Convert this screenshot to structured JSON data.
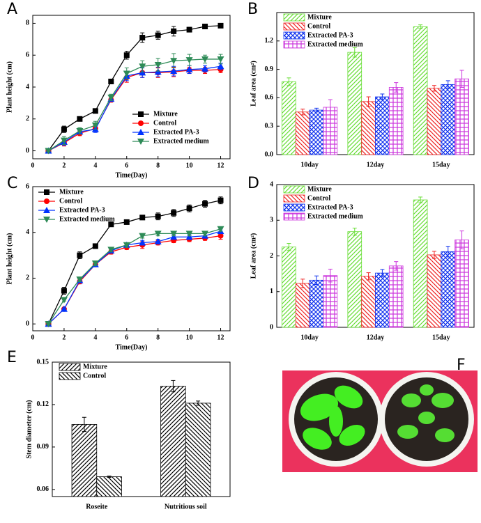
{
  "chart_data": [
    {
      "panel": "A",
      "type": "line",
      "xlabel": "Time(Day)",
      "ylabel": "Plant height (cm)",
      "x": [
        1,
        2,
        3,
        4,
        5,
        6,
        7,
        8,
        9,
        10,
        11,
        12
      ],
      "xlim": [
        0,
        12.6
      ],
      "xticks": [
        0,
        2,
        4,
        6,
        8,
        10,
        12
      ],
      "ylim": [
        -0.5,
        8.5
      ],
      "yticks": [
        0,
        2,
        4,
        6,
        8
      ],
      "legend": "lower right",
      "series": [
        {
          "name": "Mixture",
          "color": "#000000",
          "marker": "s",
          "values": [
            0,
            1.35,
            2.0,
            2.5,
            4.35,
            6.0,
            7.1,
            7.25,
            7.5,
            7.6,
            7.8,
            7.85
          ],
          "errors": [
            0.05,
            0.2,
            0.1,
            0.1,
            0.1,
            0.25,
            0.3,
            0.25,
            0.3,
            0.15,
            0.1,
            0.1
          ]
        },
        {
          "name": "Control",
          "color": "#ff0000",
          "marker": "o",
          "values": [
            0,
            0.5,
            1.1,
            1.4,
            3.2,
            4.6,
            4.9,
            4.9,
            4.95,
            5.05,
            5.05,
            5.1
          ],
          "errors": [
            0.05,
            0.2,
            0.15,
            0.2,
            0.15,
            0.3,
            0.3,
            0.3,
            0.3,
            0.2,
            0.2,
            0.2
          ]
        },
        {
          "name": "Extracted PA-3",
          "color": "#0033ff",
          "marker": "^",
          "values": [
            0,
            0.55,
            1.2,
            1.35,
            3.25,
            4.7,
            4.9,
            4.95,
            5.0,
            5.1,
            5.15,
            5.3
          ],
          "errors": [
            0.05,
            0.2,
            0.15,
            0.2,
            0.15,
            0.3,
            0.3,
            0.3,
            0.3,
            0.25,
            0.2,
            0.2
          ]
        },
        {
          "name": "Extracted medium",
          "color": "#2e8b57",
          "marker": "v",
          "values": [
            0,
            0.65,
            1.25,
            1.6,
            3.35,
            4.85,
            5.3,
            5.4,
            5.65,
            5.7,
            5.75,
            5.75
          ],
          "errors": [
            0.05,
            0.25,
            0.2,
            0.25,
            0.2,
            0.35,
            0.35,
            0.4,
            0.45,
            0.35,
            0.25,
            0.3
          ]
        }
      ]
    },
    {
      "panel": "B",
      "type": "bar",
      "ylabel": "Leaf area (cm²)",
      "categories": [
        "10day",
        "12day",
        "15day"
      ],
      "ylim": [
        0,
        1.5
      ],
      "yticks": [
        {
          "value": 0,
          "label": "0.0"
        },
        0.3,
        0.6,
        0.9,
        1.2
      ],
      "legend": "upper left",
      "series": [
        {
          "name": "Mixture",
          "color": "#66dd33",
          "hatch": "/",
          "values": [
            0.77,
            1.08,
            1.35
          ],
          "errors": [
            0.04,
            0.05,
            0.02
          ]
        },
        {
          "name": "Control",
          "color": "#ee2222",
          "hatch": "\\",
          "values": [
            0.45,
            0.56,
            0.7
          ],
          "errors": [
            0.03,
            0.05,
            0.03
          ]
        },
        {
          "name": "Extracted PA-3",
          "color": "#1133ee",
          "hatch": "x",
          "values": [
            0.47,
            0.61,
            0.74
          ],
          "errors": [
            0.02,
            0.03,
            0.04
          ]
        },
        {
          "name": "Extracted medium",
          "color": "#cc33dd",
          "hatch": "+",
          "values": [
            0.5,
            0.71,
            0.8
          ],
          "errors": [
            0.08,
            0.05,
            0.09
          ]
        }
      ]
    },
    {
      "panel": "C",
      "type": "line",
      "xlabel": "Time(Day)",
      "ylabel": "Plant height (cm)",
      "x": [
        1,
        2,
        3,
        4,
        5,
        6,
        7,
        8,
        9,
        10,
        11,
        12
      ],
      "xlim": [
        0,
        12.6
      ],
      "xticks": [
        0,
        2,
        4,
        6,
        8,
        10,
        12
      ],
      "ylim": [
        -0.3,
        6
      ],
      "yticks": [
        0,
        2,
        4,
        6
      ],
      "legend": "upper left",
      "series": [
        {
          "name": "Mixture",
          "color": "#000000",
          "marker": "s",
          "values": [
            0,
            1.45,
            3.0,
            3.4,
            4.35,
            4.45,
            4.65,
            4.7,
            4.85,
            5.05,
            5.25,
            5.4
          ],
          "errors": [
            0.05,
            0.15,
            0.15,
            0.1,
            0.05,
            0.05,
            0.05,
            0.15,
            0.15,
            0.15,
            0.15,
            0.15
          ]
        },
        {
          "name": "Control",
          "color": "#ff0000",
          "marker": "o",
          "values": [
            0,
            0.65,
            1.85,
            2.6,
            3.15,
            3.35,
            3.45,
            3.55,
            3.65,
            3.7,
            3.75,
            3.85
          ],
          "errors": [
            0.05,
            0.05,
            0.1,
            0.1,
            0.1,
            0.1,
            0.15,
            0.1,
            0.1,
            0.1,
            0.1,
            0.15
          ]
        },
        {
          "name": "Extracted PA-3",
          "color": "#0033ff",
          "marker": "^",
          "values": [
            0,
            0.65,
            1.9,
            2.6,
            3.2,
            3.45,
            3.55,
            3.6,
            3.8,
            3.8,
            3.85,
            4.05
          ],
          "errors": [
            0.05,
            0.05,
            0.1,
            0.1,
            0.1,
            0.1,
            0.1,
            0.1,
            0.1,
            0.1,
            0.1,
            0.1
          ]
        },
        {
          "name": "Extracted medium",
          "color": "#2e8b57",
          "marker": "v",
          "values": [
            0,
            1.05,
            1.95,
            2.65,
            3.25,
            3.45,
            3.85,
            3.95,
            3.95,
            3.95,
            3.95,
            4.15
          ],
          "errors": [
            0.05,
            0.05,
            0.1,
            0.1,
            0.1,
            0.1,
            0.1,
            0.1,
            0.1,
            0.1,
            0.1,
            0.1
          ]
        }
      ]
    },
    {
      "panel": "D",
      "type": "bar",
      "ylabel": "Leaf area (cm²)",
      "categories": [
        "10day",
        "12day",
        "15day"
      ],
      "ylim": [
        0,
        4
      ],
      "yticks": [
        0,
        1,
        2,
        3,
        4
      ],
      "legend": "upper left",
      "series": [
        {
          "name": "Mixture",
          "color": "#66dd33",
          "hatch": "/",
          "values": [
            2.25,
            2.68,
            3.57
          ],
          "errors": [
            0.1,
            0.1,
            0.08
          ]
        },
        {
          "name": "Control",
          "color": "#ee2222",
          "hatch": "\\",
          "values": [
            1.23,
            1.43,
            2.03
          ],
          "errors": [
            0.12,
            0.1,
            0.1
          ]
        },
        {
          "name": "Extracted PA-3",
          "color": "#1133ee",
          "hatch": "x",
          "values": [
            1.32,
            1.52,
            2.12
          ],
          "errors": [
            0.12,
            0.1,
            0.15
          ]
        },
        {
          "name": "Extracted medium",
          "color": "#cc33dd",
          "hatch": "+",
          "values": [
            1.45,
            1.72,
            2.45
          ],
          "errors": [
            0.18,
            0.12,
            0.25
          ]
        }
      ]
    },
    {
      "panel": "E",
      "type": "bar",
      "ylabel": "Stem diameter (cm)",
      "categories": [
        "Roseite",
        "Nutritious soil"
      ],
      "ylim": [
        0.055,
        0.15
      ],
      "yticks": [
        0.06,
        0.09,
        0.12,
        0.15
      ],
      "legend": "upper left",
      "series": [
        {
          "name": "Mixture",
          "color": "#000000",
          "hatch": "/",
          "values": [
            0.106,
            0.133
          ],
          "errors": [
            0.005,
            0.004
          ]
        },
        {
          "name": "Control",
          "color": "#000000",
          "hatch": "\\",
          "values": [
            0.069,
            0.121
          ],
          "errors": [
            0.0005,
            0.0015
          ]
        }
      ]
    }
  ],
  "photo": {
    "panel": "F"
  }
}
